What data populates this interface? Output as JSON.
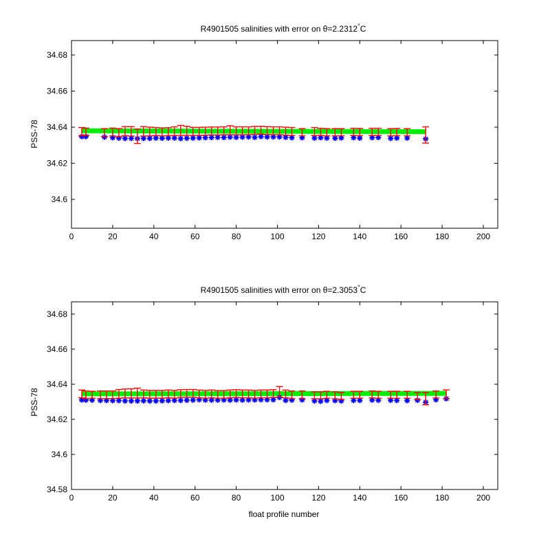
{
  "colors": {
    "background": "#ffffff",
    "axes": "#000000",
    "mapped": "#ff0000",
    "calibrated": "#00ee00",
    "profile": "#0000ff"
  },
  "chart_data": [
    {
      "type": "scatter",
      "title_prefix": "R4901505 salinities with error on θ=2.2312",
      "title_degree": "°",
      "title_suffix": "C",
      "xlabel": "",
      "ylabel": "PSS-78",
      "xlim": [
        0,
        207
      ],
      "ylim": [
        34.584,
        34.688
      ],
      "xticks": [
        0,
        20,
        40,
        60,
        80,
        100,
        120,
        140,
        160,
        180,
        200
      ],
      "yticks": [
        34.6,
        34.62,
        34.64,
        34.66,
        34.68
      ],
      "yticklabels": [
        "34.6",
        "34.62",
        "34.64",
        "34.66",
        "34.68"
      ],
      "calibrated_line": {
        "x": [
          5,
          172
        ],
        "y": [
          34.638,
          34.6375
        ],
        "style": "thick-green"
      },
      "series": [
        {
          "marker": "blue-star",
          "x": [
            5,
            7,
            16,
            20,
            23,
            26,
            29,
            32,
            35,
            38,
            41,
            44,
            47,
            50,
            53,
            56,
            59,
            62,
            65,
            68,
            71,
            74,
            77,
            80,
            83,
            86,
            89,
            92,
            95,
            98,
            101,
            104,
            107,
            112,
            118,
            121,
            124,
            128,
            131,
            137,
            140,
            146,
            149,
            155,
            158,
            163,
            172
          ],
          "y": [
            34.6348,
            34.6348,
            34.6345,
            34.6342,
            34.634,
            34.6338,
            34.6338,
            34.6337,
            34.6338,
            34.6338,
            34.634,
            34.6339,
            34.634,
            34.634,
            34.6337,
            34.6339,
            34.634,
            34.6341,
            34.6342,
            34.6343,
            34.6344,
            34.6343,
            34.6345,
            34.6344,
            34.6345,
            34.6346,
            34.6344,
            34.6348,
            34.6346,
            34.6346,
            34.6346,
            34.6344,
            34.6342,
            34.6342,
            34.634,
            34.6342,
            34.634,
            34.6339,
            34.6341,
            34.6342,
            34.634,
            34.6342,
            34.6343,
            34.6338,
            34.634,
            34.634,
            34.6335
          ]
        }
      ],
      "errorbars": {
        "x": [
          5,
          7,
          16,
          20,
          23,
          26,
          29,
          32,
          35,
          38,
          41,
          44,
          47,
          50,
          53,
          56,
          59,
          62,
          65,
          68,
          71,
          74,
          77,
          80,
          83,
          86,
          89,
          92,
          95,
          98,
          101,
          104,
          107,
          112,
          118,
          121,
          124,
          128,
          131,
          137,
          140,
          146,
          149,
          155,
          158,
          163,
          172
        ],
        "y": [
          34.6375,
          34.6375,
          34.637,
          34.6373,
          34.637,
          34.6378,
          34.6377,
          34.635,
          34.6377,
          34.6376,
          34.6376,
          34.6374,
          34.6375,
          34.6378,
          34.6382,
          34.638,
          34.6377,
          34.6377,
          34.6378,
          34.6379,
          34.6379,
          34.638,
          34.6383,
          34.638,
          34.638,
          34.638,
          34.6382,
          34.6383,
          34.6381,
          34.638,
          34.638,
          34.6378,
          34.6376,
          34.6372,
          34.6376,
          34.6374,
          34.6372,
          34.6372,
          34.6372,
          34.6374,
          34.6373,
          34.6374,
          34.6374,
          34.6372,
          34.6373,
          34.6372,
          34.6357
        ],
        "err": [
          0.0023,
          0.002,
          0.0022,
          0.0022,
          0.0022,
          0.0025,
          0.0026,
          0.004,
          0.0026,
          0.0024,
          0.0022,
          0.0022,
          0.0022,
          0.0024,
          0.0028,
          0.0025,
          0.0022,
          0.0022,
          0.0022,
          0.0022,
          0.0022,
          0.0022,
          0.0025,
          0.0022,
          0.0022,
          0.0022,
          0.0022,
          0.0022,
          0.0022,
          0.0022,
          0.0022,
          0.0022,
          0.0022,
          0.002,
          0.0022,
          0.002,
          0.002,
          0.002,
          0.002,
          0.002,
          0.002,
          0.002,
          0.002,
          0.002,
          0.002,
          0.002,
          0.0045
        ]
      }
    },
    {
      "type": "scatter",
      "title_prefix": "R4901505 salinities with error on θ=2.3053",
      "title_degree": "°",
      "title_suffix": "C",
      "xlabel": "float profile number",
      "ylabel": "PSS-78",
      "xlim": [
        0,
        207
      ],
      "ylim": [
        34.58,
        34.687
      ],
      "xticks": [
        0,
        20,
        40,
        60,
        80,
        100,
        120,
        140,
        160,
        180,
        200
      ],
      "yticks": [
        34.58,
        34.6,
        34.62,
        34.64,
        34.66,
        34.68
      ],
      "yticklabels": [
        "34.58",
        "34.6",
        "34.62",
        "34.64",
        "34.66",
        "34.68"
      ],
      "calibrated_line": {
        "x": [
          5,
          182
        ],
        "y": [
          34.6345,
          34.6348
        ],
        "style": "thick-green"
      },
      "series": [
        {
          "marker": "blue-star",
          "x": [
            5,
            7,
            10,
            14,
            17,
            20,
            23,
            26,
            29,
            32,
            35,
            38,
            41,
            44,
            47,
            50,
            53,
            56,
            59,
            62,
            65,
            68,
            71,
            74,
            77,
            80,
            83,
            86,
            89,
            92,
            95,
            98,
            101,
            104,
            107,
            112,
            118,
            121,
            124,
            128,
            131,
            137,
            140,
            146,
            149,
            155,
            158,
            163,
            168,
            172,
            177,
            182
          ],
          "y": [
            34.6311,
            34.631,
            34.631,
            34.6308,
            34.6308,
            34.6307,
            34.6307,
            34.6305,
            34.6305,
            34.6305,
            34.6306,
            34.6305,
            34.6305,
            34.6306,
            34.6307,
            34.6308,
            34.6308,
            34.6309,
            34.631,
            34.6312,
            34.631,
            34.631,
            34.631,
            34.6311,
            34.631,
            34.6311,
            34.631,
            34.6311,
            34.6311,
            34.6312,
            34.6312,
            34.6312,
            34.6325,
            34.6308,
            34.631,
            34.6311,
            34.6305,
            34.6303,
            34.6308,
            34.6307,
            34.6305,
            34.6308,
            34.6308,
            34.631,
            34.6309,
            34.6309,
            34.6308,
            34.6307,
            34.6309,
            34.6298,
            34.6312,
            34.6318
          ]
        }
      ],
      "errorbars": {
        "x": [
          5,
          7,
          10,
          14,
          17,
          20,
          23,
          26,
          29,
          32,
          35,
          38,
          41,
          44,
          47,
          50,
          53,
          56,
          59,
          62,
          65,
          68,
          71,
          74,
          77,
          80,
          83,
          86,
          89,
          92,
          95,
          98,
          101,
          104,
          107,
          112,
          118,
          121,
          124,
          128,
          131,
          137,
          140,
          146,
          149,
          155,
          158,
          163,
          168,
          172,
          177,
          182
        ],
        "y": [
          34.6345,
          34.634,
          34.634,
          34.634,
          34.634,
          34.634,
          34.6345,
          34.6348,
          34.6348,
          34.635,
          34.6345,
          34.6343,
          34.6343,
          34.6343,
          34.6345,
          34.6343,
          34.6347,
          34.6348,
          34.6348,
          34.6345,
          34.6343,
          34.6345,
          34.6342,
          34.6342,
          34.6345,
          34.6347,
          34.6345,
          34.6345,
          34.6343,
          34.6345,
          34.6345,
          34.6347,
          34.6357,
          34.6345,
          34.634,
          34.634,
          34.6337,
          34.6337,
          34.634,
          34.6337,
          34.6333,
          34.634,
          34.634,
          34.6342,
          34.634,
          34.634,
          34.634,
          34.634,
          34.6333,
          34.6318,
          34.6342,
          34.6343
        ],
        "err": [
          0.0022,
          0.0022,
          0.002,
          0.0022,
          0.0022,
          0.0022,
          0.0025,
          0.0025,
          0.0026,
          0.0028,
          0.0022,
          0.0022,
          0.0022,
          0.0022,
          0.0022,
          0.0022,
          0.0022,
          0.0022,
          0.0022,
          0.0022,
          0.0022,
          0.0022,
          0.0022,
          0.0022,
          0.0022,
          0.0022,
          0.0022,
          0.0022,
          0.0022,
          0.0022,
          0.0022,
          0.0022,
          0.003,
          0.0022,
          0.0022,
          0.0022,
          0.002,
          0.002,
          0.002,
          0.002,
          0.002,
          0.002,
          0.002,
          0.002,
          0.002,
          0.002,
          0.002,
          0.002,
          0.002,
          0.0035,
          0.002,
          0.0025
        ]
      }
    }
  ]
}
